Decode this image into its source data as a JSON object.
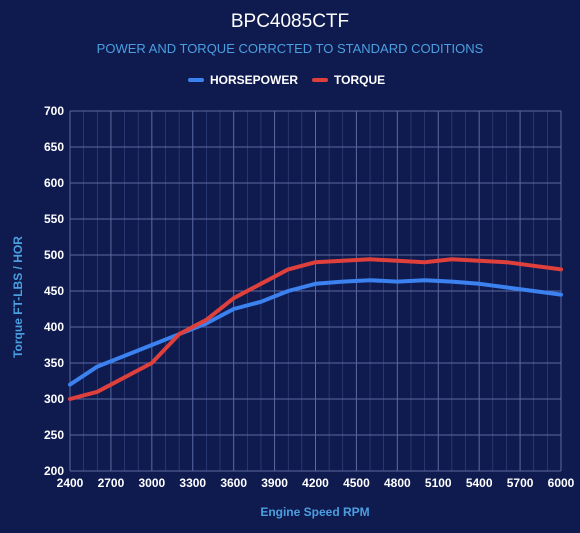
{
  "chart_data": {
    "type": "line",
    "title": "BPC4085CTF",
    "subtitle": "POWER AND TORQUE CORRCTED TO STANDARD CODITIONS",
    "xlabel": "Engine Speed RPM",
    "ylabel": "Torque FT-LBS / HOR",
    "xlim": [
      2400,
      6000
    ],
    "ylim": [
      200,
      700
    ],
    "x_ticks": [
      "2400",
      "2700",
      "3000",
      "3300",
      "3600",
      "3900",
      "4200",
      "4500",
      "4800",
      "5100",
      "5400",
      "5700",
      "6000"
    ],
    "y_ticks": [
      "200",
      "250",
      "300",
      "350",
      "400",
      "450",
      "500",
      "550",
      "600",
      "650",
      "700"
    ],
    "grid": true,
    "legend_position": "top-center",
    "series": [
      {
        "name": "HORSEPOWER",
        "color": "#3b82f0",
        "x": [
          2400,
          2600,
          2800,
          3000,
          3200,
          3400,
          3600,
          3800,
          4000,
          4200,
          4400,
          4600,
          4800,
          5000,
          5200,
          5400,
          5600,
          5800,
          6000
        ],
        "y": [
          320,
          345,
          360,
          375,
          390,
          405,
          425,
          435,
          450,
          460,
          463,
          465,
          463,
          465,
          463,
          460,
          455,
          450,
          445
        ]
      },
      {
        "name": "TORQUE",
        "color": "#e0403c",
        "x": [
          2400,
          2600,
          2800,
          3000,
          3200,
          3400,
          3600,
          3800,
          4000,
          4200,
          4400,
          4600,
          4800,
          5000,
          5200,
          5400,
          5600,
          5800,
          6000
        ],
        "y": [
          300,
          310,
          330,
          350,
          390,
          410,
          440,
          460,
          480,
          490,
          492,
          494,
          492,
          490,
          494,
          492,
          490,
          485,
          480
        ]
      }
    ]
  }
}
